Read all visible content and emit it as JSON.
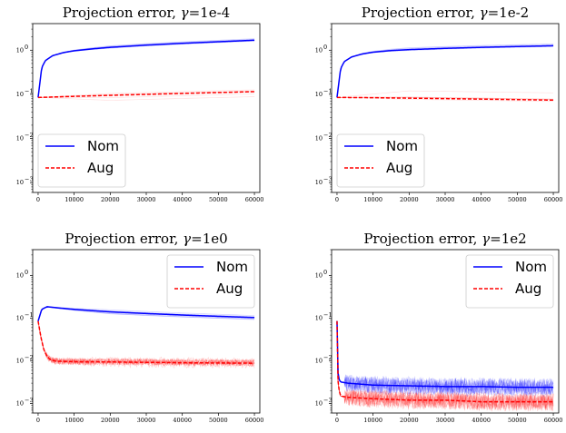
{
  "colors": {
    "nom": "#0000ff",
    "aug": "#ff0000",
    "axis": "#000000",
    "legend_border": "#cccccc"
  },
  "chart_data": [
    {
      "type": "line",
      "title_prefix": "Projection error, ",
      "title_symbol": "γ",
      "title_suffix": "=1e-4",
      "xlabel": "",
      "ylabel": "",
      "yscale": "log",
      "xlim": [
        -1500,
        61500
      ],
      "ylim": [
        0.0006,
        4.0
      ],
      "xticks": [
        0,
        10000,
        20000,
        30000,
        40000,
        50000,
        60000
      ],
      "xtick_labels": [
        "0",
        "10000",
        "20000",
        "30000",
        "40000",
        "50000",
        "60000"
      ],
      "yticks": [
        0.001,
        0.01,
        0.1,
        1
      ],
      "ytick_labels": [
        "10",
        "10",
        "10",
        "10"
      ],
      "ytick_exponents": [
        "−3",
        "−2",
        "−1",
        "0"
      ],
      "grid": false,
      "legend_position": "lower-left",
      "series": [
        {
          "name": "Nom",
          "style": "solid",
          "color": "#0000ff",
          "x": [
            0,
            1000,
            2000,
            4000,
            7000,
            10000,
            15000,
            20000,
            30000,
            40000,
            50000,
            60000
          ],
          "y": [
            0.085,
            0.4,
            0.58,
            0.75,
            0.88,
            0.97,
            1.07,
            1.16,
            1.3,
            1.43,
            1.55,
            1.68
          ]
        },
        {
          "name": "Aug",
          "style": "dashed",
          "color": "#ff0000",
          "x": [
            0,
            10000,
            20000,
            30000,
            40000,
            50000,
            60000
          ],
          "y": [
            0.085,
            0.09,
            0.095,
            0.1,
            0.105,
            0.11,
            0.115
          ]
        }
      ]
    },
    {
      "type": "line",
      "title_prefix": "Projection error, ",
      "title_symbol": "γ",
      "title_suffix": "=1e-2",
      "xlabel": "",
      "ylabel": "",
      "yscale": "log",
      "xlim": [
        -1500,
        61500
      ],
      "ylim": [
        0.0006,
        4.0
      ],
      "xticks": [
        0,
        10000,
        20000,
        30000,
        40000,
        50000,
        60000
      ],
      "xtick_labels": [
        "0",
        "10000",
        "20000",
        "30000",
        "40000",
        "50000",
        "60000"
      ],
      "yticks": [
        0.001,
        0.01,
        0.1,
        1
      ],
      "ytick_labels": [
        "10",
        "10",
        "10",
        "10"
      ],
      "ytick_exponents": [
        "−3",
        "−2",
        "−1",
        "0"
      ],
      "grid": false,
      "legend_position": "lower-left",
      "series": [
        {
          "name": "Nom",
          "style": "solid",
          "color": "#0000ff",
          "x": [
            0,
            1000,
            2000,
            4000,
            7000,
            10000,
            15000,
            20000,
            30000,
            40000,
            50000,
            60000
          ],
          "y": [
            0.085,
            0.38,
            0.55,
            0.7,
            0.82,
            0.9,
            0.98,
            1.03,
            1.1,
            1.16,
            1.21,
            1.26
          ]
        },
        {
          "name": "Aug",
          "style": "dashed",
          "color": "#ff0000",
          "x": [
            0,
            10000,
            20000,
            30000,
            40000,
            50000,
            60000
          ],
          "y": [
            0.085,
            0.084,
            0.082,
            0.08,
            0.078,
            0.076,
            0.074
          ]
        }
      ]
    },
    {
      "type": "line",
      "title_prefix": "Projection error, ",
      "title_symbol": "γ",
      "title_suffix": "=1e0",
      "xlabel": "",
      "ylabel": "",
      "yscale": "log",
      "xlim": [
        -1500,
        61500
      ],
      "ylim": [
        0.0006,
        4.0
      ],
      "xticks": [
        0,
        10000,
        20000,
        30000,
        40000,
        50000,
        60000
      ],
      "xtick_labels": [
        "0",
        "10000",
        "20000",
        "30000",
        "40000",
        "50000",
        "60000"
      ],
      "yticks": [
        0.001,
        0.01,
        0.1,
        1
      ],
      "ytick_labels": [
        "10",
        "10",
        "10",
        "10"
      ],
      "ytick_exponents": [
        "−3",
        "−2",
        "−1",
        "0"
      ],
      "grid": false,
      "legend_position": "upper-right",
      "series": [
        {
          "name": "Nom",
          "style": "solid",
          "color": "#0000ff",
          "x": [
            0,
            1000,
            2500,
            5000,
            10000,
            20000,
            30000,
            40000,
            50000,
            60000
          ],
          "y": [
            0.085,
            0.16,
            0.185,
            0.175,
            0.16,
            0.14,
            0.128,
            0.118,
            0.11,
            0.103
          ]
        },
        {
          "name": "Aug",
          "style": "dashed",
          "color": "#ff0000",
          "x": [
            0,
            800,
            1600,
            2500,
            3500,
            5000,
            10000,
            20000,
            30000,
            40000,
            50000,
            60000
          ],
          "y": [
            0.085,
            0.035,
            0.018,
            0.0125,
            0.0105,
            0.0098,
            0.0095,
            0.0094,
            0.0092,
            0.009,
            0.0089,
            0.0088
          ]
        }
      ]
    },
    {
      "type": "line",
      "title_prefix": "Projection error, ",
      "title_symbol": "γ",
      "title_suffix": "=1e2",
      "xlabel": "",
      "ylabel": "",
      "yscale": "log",
      "xlim": [
        -1500,
        61500
      ],
      "ylim": [
        0.0006,
        4.0
      ],
      "xticks": [
        0,
        10000,
        20000,
        30000,
        40000,
        50000,
        60000
      ],
      "xtick_labels": [
        "0",
        "10000",
        "20000",
        "30000",
        "40000",
        "50000",
        "60000"
      ],
      "yticks": [
        0.001,
        0.01,
        0.1,
        1
      ],
      "ytick_labels": [
        "10",
        "10",
        "10",
        "10"
      ],
      "ytick_exponents": [
        "−3",
        "−2",
        "−1",
        "0"
      ],
      "grid": false,
      "legend_position": "upper-right",
      "series": [
        {
          "name": "Nom",
          "style": "solid",
          "color": "#0000ff",
          "x": [
            0,
            200,
            500,
            1000,
            3000,
            10000,
            20000,
            30000,
            40000,
            50000,
            60000
          ],
          "y": [
            0.085,
            0.006,
            0.0038,
            0.0032,
            0.003,
            0.0027,
            0.0026,
            0.0025,
            0.0025,
            0.0024,
            0.0024
          ]
        },
        {
          "name": "Aug",
          "style": "dashed",
          "color": "#ff0000",
          "x": [
            0,
            200,
            500,
            1000,
            3000,
            10000,
            20000,
            30000,
            40000,
            50000,
            60000
          ],
          "y": [
            0.085,
            0.004,
            0.0022,
            0.0015,
            0.0014,
            0.0013,
            0.0012,
            0.0012,
            0.0011,
            0.0011,
            0.0011
          ]
        }
      ]
    }
  ]
}
